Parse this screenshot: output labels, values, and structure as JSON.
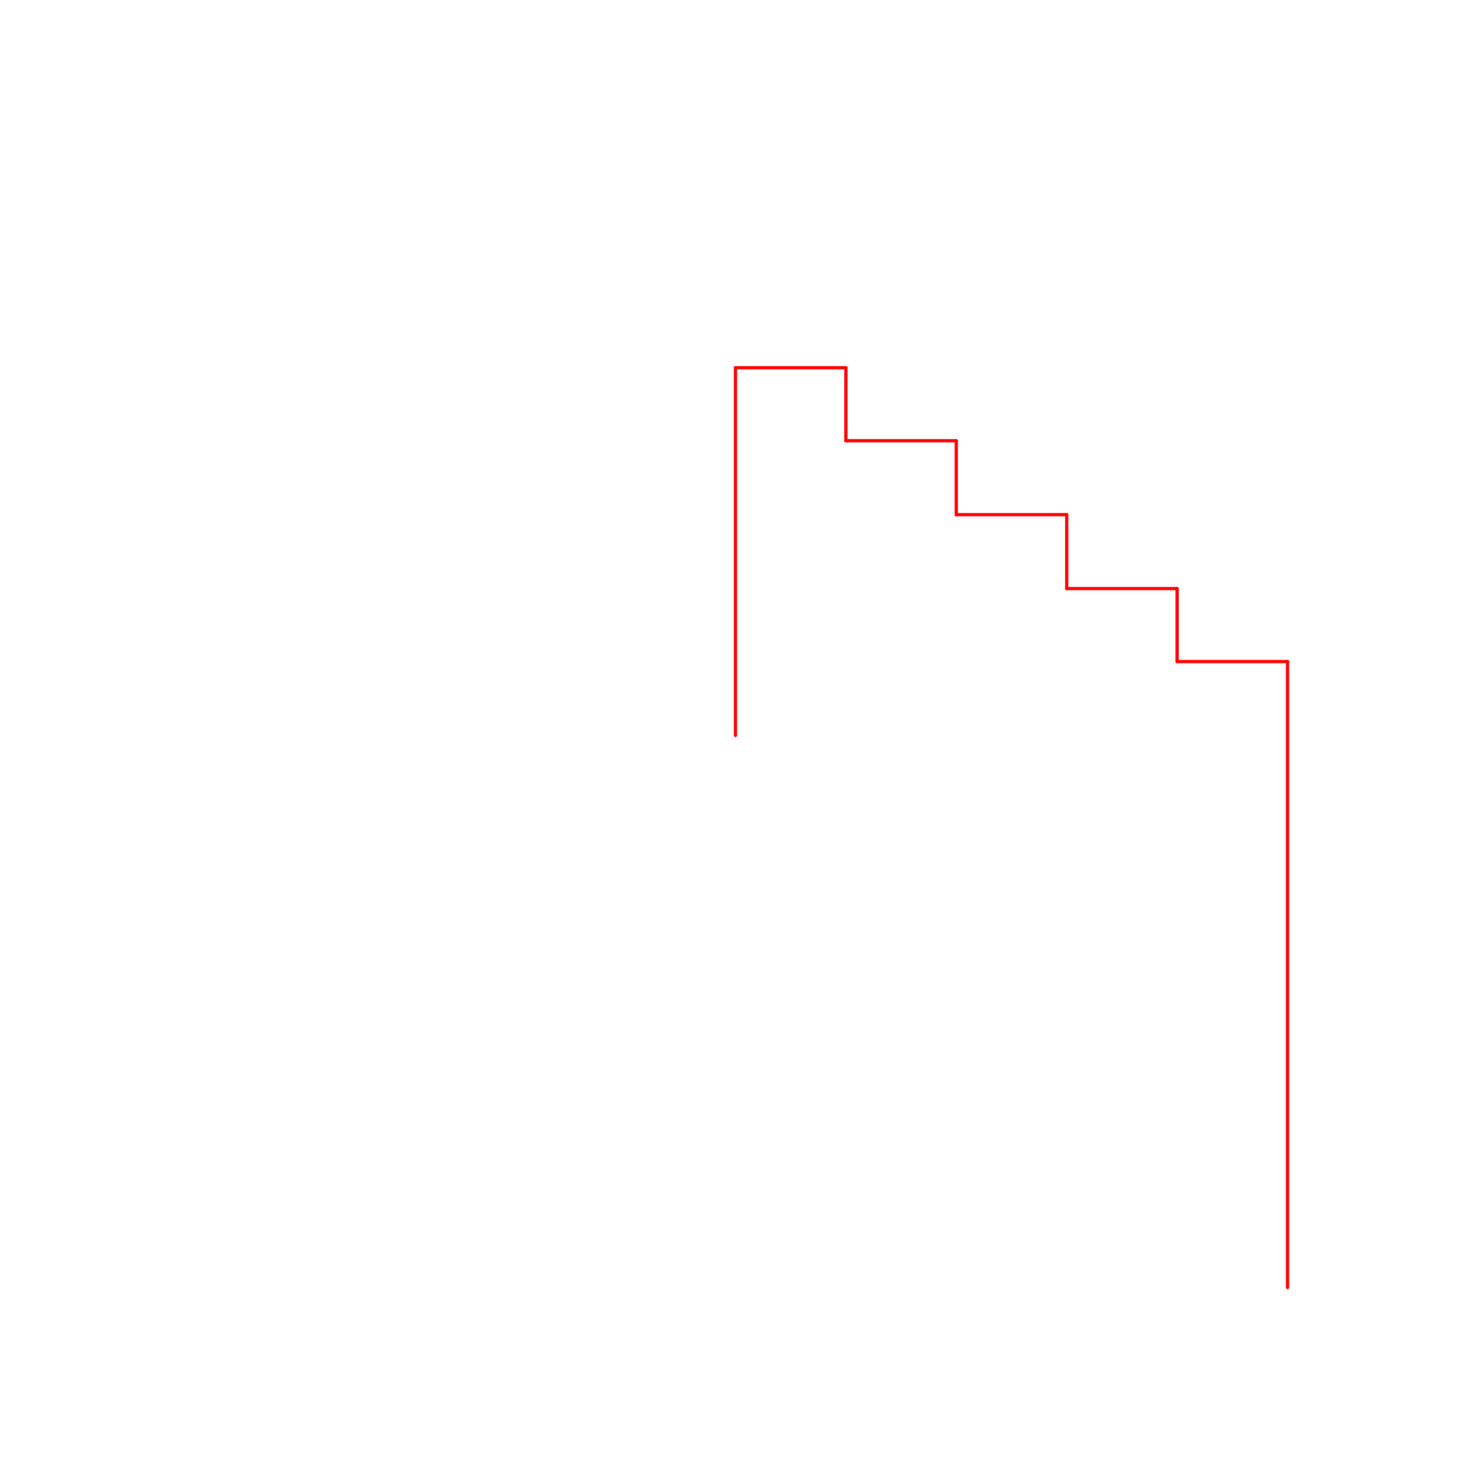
{
  "diagram": {
    "shape": "staircase-polyline",
    "colors": {
      "background": "#ffffff",
      "line": "#ff0000"
    },
    "segments": [
      {
        "name": "left-rise"
      },
      {
        "name": "top-tread"
      },
      {
        "name": "step-1-drop"
      },
      {
        "name": "step-1-tread"
      },
      {
        "name": "step-2-drop"
      },
      {
        "name": "step-2-tread"
      },
      {
        "name": "step-3-drop"
      },
      {
        "name": "step-3-tread"
      },
      {
        "name": "step-4-drop"
      },
      {
        "name": "step-4-tread"
      },
      {
        "name": "right-descent"
      }
    ]
  }
}
